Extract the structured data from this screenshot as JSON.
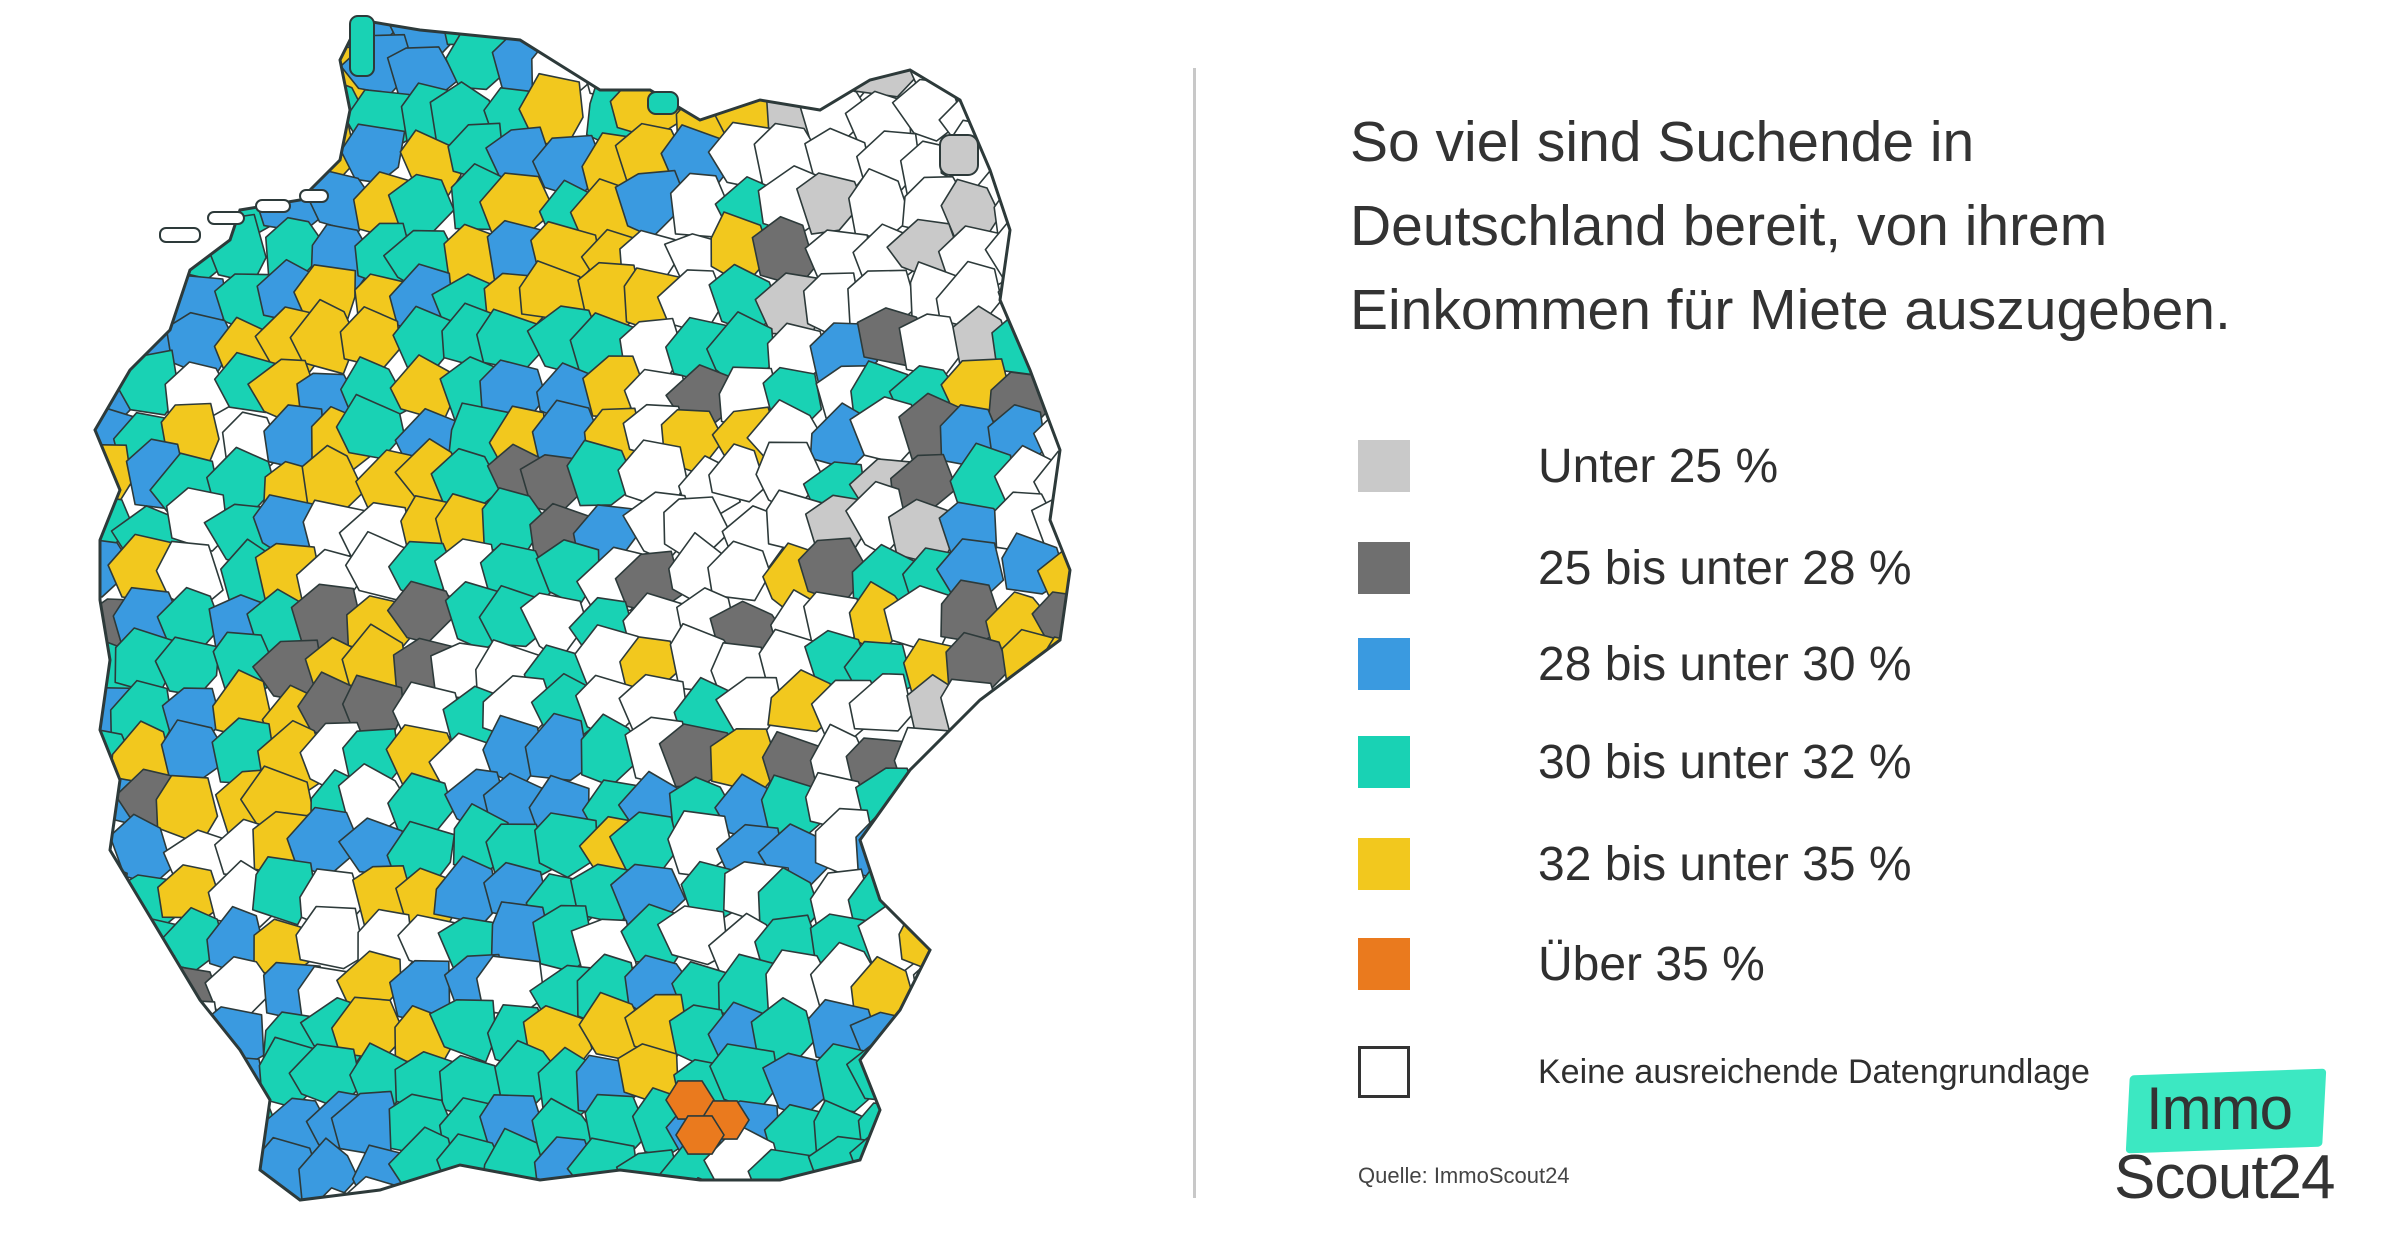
{
  "title_lines": [
    "So viel sind Suchende in",
    "Deutschland bereit, von ihrem",
    "Einkommen für Miete auszugeben."
  ],
  "legend": [
    {
      "label": "Unter 25 %",
      "color": "#c9c9c9"
    },
    {
      "label": "25 bis unter 28 %",
      "color": "#6f6f6f"
    },
    {
      "label": "28 bis unter 30 %",
      "color": "#3a9ae0"
    },
    {
      "label": "30 bis unter 32 %",
      "color": "#19d2b4"
    },
    {
      "label": "32 bis unter 35 %",
      "color": "#f2c81e"
    },
    {
      "label": "Über 35 %",
      "color": "#ea7a1e"
    },
    {
      "label": "Keine ausreichende Datengrundlage",
      "color": "#ffffff"
    }
  ],
  "source": "Quelle: ImmoScout24",
  "logo": {
    "line1": "Immo",
    "line2": "Scout24",
    "accent": "#3ce8c2"
  },
  "map": {
    "country": "Deutschland",
    "colors": {
      "low": "#c9c9c9",
      "low_mid": "#6f6f6f",
      "mid": "#3a9ae0",
      "mid_high": "#19d2b4",
      "high": "#f2c81e",
      "very_high": "#ea7a1e",
      "no_data": "#ffffff",
      "border": "#2d3a3a"
    }
  }
}
